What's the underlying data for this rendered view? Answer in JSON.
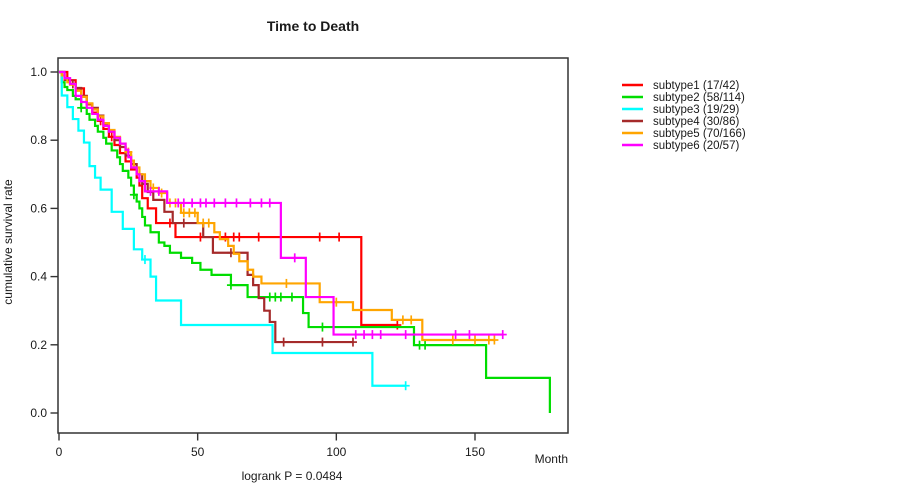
{
  "chart_data": {
    "type": "line",
    "subtype": "kaplan-meier-step",
    "title": "Time to Death",
    "xlabel": "Month",
    "ylabel": "cumulative survival rate",
    "annotation": "logrank P = 0.0484",
    "x_ticks": [
      0,
      50,
      100,
      150
    ],
    "y_ticks": [
      "0.0",
      "0.2",
      "0.4",
      "0.6",
      "0.8",
      "1.0"
    ],
    "xlim": [
      0,
      183
    ],
    "ylim": [
      0.0,
      1.0
    ],
    "grid": "off",
    "legend_position": "right",
    "series": [
      {
        "name": "subtype1 (17/42)",
        "color": "#FF0000",
        "steps": [
          [
            0,
            1
          ],
          [
            3,
            0.976
          ],
          [
            6,
            0.952
          ],
          [
            9,
            0.929
          ],
          [
            10,
            0.905
          ],
          [
            12,
            0.881
          ],
          [
            14,
            0.857
          ],
          [
            16,
            0.833
          ],
          [
            18,
            0.81
          ],
          [
            20,
            0.786
          ],
          [
            22,
            0.762
          ],
          [
            24,
            0.738
          ],
          [
            26,
            0.714
          ],
          [
            28,
            0.69
          ],
          [
            29,
            0.667
          ],
          [
            30,
            0.63
          ],
          [
            32,
            0.6
          ],
          [
            35,
            0.557
          ],
          [
            42,
            0.516
          ],
          [
            109,
            0.258
          ],
          [
            122,
            0.258
          ]
        ],
        "censors": [
          15,
          19,
          40,
          51,
          60,
          63,
          65,
          72,
          94,
          101,
          122
        ]
      },
      {
        "name": "subtype2 (58/114)",
        "color": "#00DD00",
        "steps": [
          [
            0,
            1
          ],
          [
            1,
            0.97
          ],
          [
            2,
            0.956
          ],
          [
            3,
            0.947
          ],
          [
            5,
            0.93
          ],
          [
            6,
            0.92
          ],
          [
            8,
            0.895
          ],
          [
            10,
            0.877
          ],
          [
            11,
            0.86
          ],
          [
            13,
            0.842
          ],
          [
            14,
            0.825
          ],
          [
            16,
            0.807
          ],
          [
            17,
            0.79
          ],
          [
            19,
            0.77
          ],
          [
            21,
            0.75
          ],
          [
            22,
            0.73
          ],
          [
            23,
            0.71
          ],
          [
            25,
            0.69
          ],
          [
            26,
            0.667
          ],
          [
            27,
            0.64
          ],
          [
            28,
            0.62
          ],
          [
            29,
            0.6
          ],
          [
            30,
            0.575
          ],
          [
            31,
            0.55
          ],
          [
            33,
            0.53
          ],
          [
            36,
            0.5
          ],
          [
            38,
            0.49
          ],
          [
            40,
            0.47
          ],
          [
            44,
            0.455
          ],
          [
            48,
            0.44
          ],
          [
            51,
            0.42
          ],
          [
            55,
            0.405
          ],
          [
            62,
            0.375
          ],
          [
            68,
            0.34
          ],
          [
            88,
            0.293
          ],
          [
            90,
            0.252
          ],
          [
            128,
            0.199
          ],
          [
            154,
            0.103
          ],
          [
            177,
            0
          ]
        ],
        "censors": [
          8,
          27,
          62,
          76,
          78,
          80,
          84,
          95,
          130,
          132
        ]
      },
      {
        "name": "subtype3 (19/29)",
        "color": "#00FFFF",
        "steps": [
          [
            0,
            1
          ],
          [
            1,
            0.931
          ],
          [
            3,
            0.897
          ],
          [
            5,
            0.862
          ],
          [
            7,
            0.828
          ],
          [
            9,
            0.793
          ],
          [
            11,
            0.724
          ],
          [
            13,
            0.69
          ],
          [
            15,
            0.655
          ],
          [
            19,
            0.59
          ],
          [
            23,
            0.54
          ],
          [
            27,
            0.48
          ],
          [
            30,
            0.45
          ],
          [
            33,
            0.4
          ],
          [
            35,
            0.33
          ],
          [
            44,
            0.258
          ],
          [
            77,
            0.176
          ],
          [
            113,
            0.08
          ],
          [
            125,
            0.08
          ]
        ],
        "censors": [
          31,
          125
        ]
      },
      {
        "name": "subtype4 (30/86)",
        "color": "#A52A2A",
        "steps": [
          [
            0,
            1
          ],
          [
            2,
            0.977
          ],
          [
            4,
            0.965
          ],
          [
            6,
            0.953
          ],
          [
            8,
            0.93
          ],
          [
            10,
            0.907
          ],
          [
            12,
            0.895
          ],
          [
            14,
            0.872
          ],
          [
            16,
            0.848
          ],
          [
            18,
            0.825
          ],
          [
            20,
            0.8
          ],
          [
            22,
            0.78
          ],
          [
            24,
            0.755
          ],
          [
            26,
            0.73
          ],
          [
            28,
            0.7
          ],
          [
            30,
            0.672
          ],
          [
            32,
            0.648
          ],
          [
            34,
            0.625
          ],
          [
            38,
            0.59
          ],
          [
            41,
            0.557
          ],
          [
            52,
            0.516
          ],
          [
            55.5,
            0.47
          ],
          [
            68,
            0.405
          ],
          [
            70,
            0.375
          ],
          [
            72,
            0.337
          ],
          [
            74,
            0.3
          ],
          [
            76,
            0.267
          ],
          [
            78,
            0.208
          ],
          [
            106,
            0.208
          ]
        ],
        "censors": [
          5,
          45,
          62,
          81,
          95,
          106
        ]
      },
      {
        "name": "subtype5 (70/166)",
        "color": "#FFA500",
        "steps": [
          [
            0,
            1
          ],
          [
            1,
            0.99
          ],
          [
            2,
            0.981
          ],
          [
            3,
            0.97
          ],
          [
            4,
            0.963
          ],
          [
            6,
            0.945
          ],
          [
            8,
            0.927
          ],
          [
            10,
            0.908
          ],
          [
            12,
            0.89
          ],
          [
            14,
            0.87
          ],
          [
            16,
            0.85
          ],
          [
            18,
            0.83
          ],
          [
            20,
            0.81
          ],
          [
            22,
            0.79
          ],
          [
            24,
            0.765
          ],
          [
            26,
            0.74
          ],
          [
            27,
            0.72
          ],
          [
            29,
            0.7
          ],
          [
            31,
            0.68
          ],
          [
            33,
            0.66
          ],
          [
            36,
            0.645
          ],
          [
            39,
            0.616
          ],
          [
            44,
            0.587
          ],
          [
            50,
            0.557
          ],
          [
            56,
            0.53
          ],
          [
            58,
            0.51
          ],
          [
            61,
            0.49
          ],
          [
            63,
            0.467
          ],
          [
            65,
            0.445
          ],
          [
            68,
            0.42
          ],
          [
            70,
            0.4
          ],
          [
            73,
            0.38
          ],
          [
            94,
            0.325
          ],
          [
            106,
            0.302
          ],
          [
            120,
            0.273
          ],
          [
            131,
            0.214
          ],
          [
            157,
            0.214
          ]
        ],
        "censors": [
          25,
          34,
          37,
          40,
          42,
          45,
          47,
          49,
          52,
          54,
          82,
          100,
          124,
          127,
          142,
          150,
          155,
          157
        ]
      },
      {
        "name": "subtype6 (20/57)",
        "color": "#FF00FF",
        "steps": [
          [
            0,
            1
          ],
          [
            2,
            0.982
          ],
          [
            4,
            0.965
          ],
          [
            6,
            0.93
          ],
          [
            8,
            0.912
          ],
          [
            10,
            0.895
          ],
          [
            12,
            0.877
          ],
          [
            14,
            0.86
          ],
          [
            16,
            0.842
          ],
          [
            18,
            0.825
          ],
          [
            20,
            0.807
          ],
          [
            22,
            0.79
          ],
          [
            24,
            0.772
          ],
          [
            25,
            0.75
          ],
          [
            26,
            0.72
          ],
          [
            28,
            0.7
          ],
          [
            29,
            0.68
          ],
          [
            31,
            0.65
          ],
          [
            39,
            0.616
          ],
          [
            80,
            0.455
          ],
          [
            89,
            0.34
          ],
          [
            99,
            0.23
          ],
          [
            160,
            0.23
          ]
        ],
        "censors": [
          33,
          36,
          43,
          45,
          48,
          51,
          53,
          56,
          60,
          64,
          69,
          73,
          76,
          85,
          107,
          110,
          113,
          116,
          125,
          143,
          148,
          160
        ]
      }
    ]
  }
}
